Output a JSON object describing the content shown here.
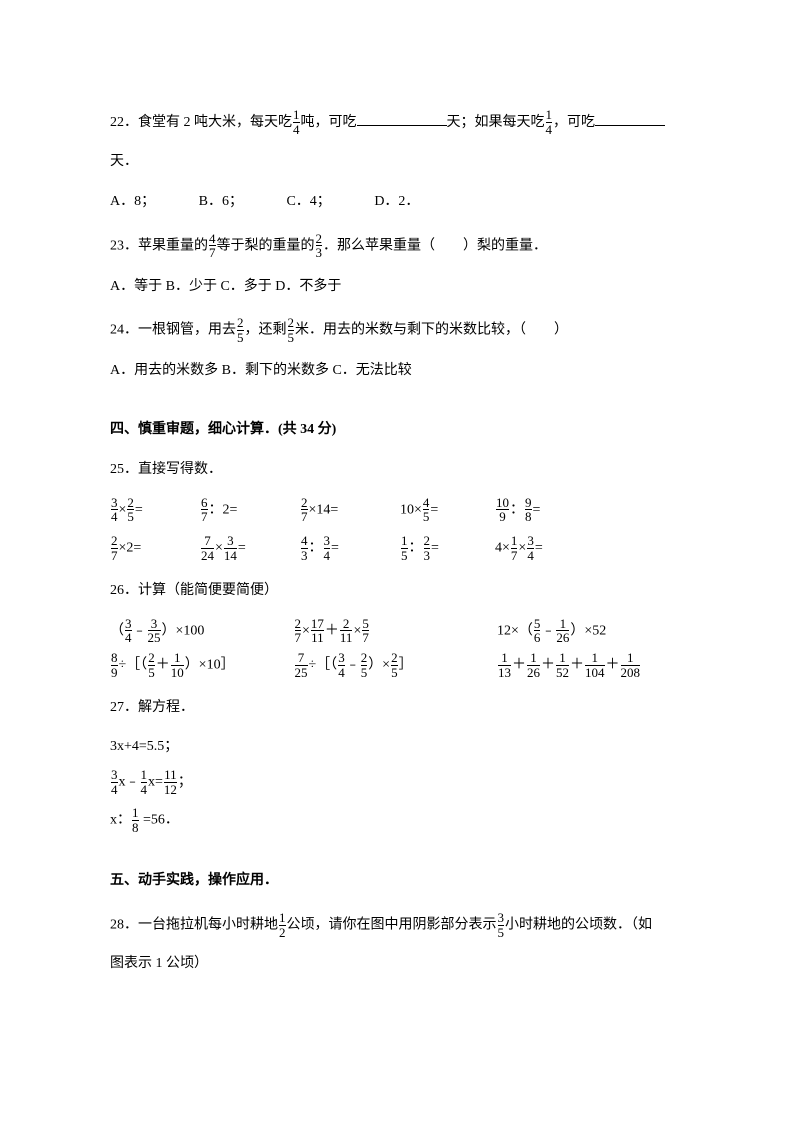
{
  "q22": {
    "num": "22",
    "p1": "．食堂有 2 吨大米，每天吃",
    "f1n": "1",
    "f1d": "4",
    "p2": "吨，可吃",
    "p3": "天；如果每天吃",
    "f2n": "1",
    "f2d": "4",
    "p4": "，可吃",
    "p5": "天．",
    "a": "A．8；",
    "b": "B．6；",
    "c": "C．4；",
    "d": "D．2．"
  },
  "q23": {
    "num": "23",
    "p1": "．苹果重量的",
    "f1n": "4",
    "f1d": "7",
    "p2": "等于梨的重量的",
    "f2n": "2",
    "f2d": "3",
    "p3": "．那么苹果重量（　　）梨的重量．",
    "opts": "A．等于 B．少于 C．多于 D．不多于"
  },
  "q24": {
    "num": "24",
    "p1": "．一根钢管，用去",
    "f1n": "2",
    "f1d": "5",
    "p2": "，还剩",
    "f2n": "2",
    "f2d": "5",
    "p3": "米．用去的米数与剩下的米数比较，（　　）",
    "opts": "A．用去的米数多 B．剩下的米数多 C．无法比较"
  },
  "sec4": "四、慎重审题，细心计算．(共 34 分)",
  "q25": {
    "num": "25",
    "title": "．直接写得数．",
    "r1": [
      {
        "an": "3",
        "ad": "4",
        "bn": "2",
        "bd": "5",
        "op": "×",
        "tail": "="
      },
      {
        "an": "6",
        "ad": "7",
        "literal_a": "",
        "op": "：",
        "bn": "",
        "bd": "",
        "literal_b": "2",
        "tail": "="
      },
      {
        "an": "2",
        "ad": "7",
        "op": "×",
        "literal_b": "14",
        "tail": "="
      },
      {
        "literal_a": "10",
        "op": "×",
        "bn": "4",
        "bd": "5",
        "tail": "="
      },
      {
        "an": "10",
        "ad": "9",
        "op": "：",
        "bn": "9",
        "bd": "8",
        "tail": "="
      }
    ],
    "r2": [
      {
        "an": "2",
        "ad": "7",
        "op": "×",
        "literal_b": "2",
        "tail": "="
      },
      {
        "an": "7",
        "ad": "24",
        "op": "×",
        "bn": "3",
        "bd": "14",
        "tail": "="
      },
      {
        "an": "4",
        "ad": "3",
        "op": "：",
        "bn": "3",
        "bd": "4",
        "tail": "="
      },
      {
        "an": "1",
        "ad": "5",
        "op": "：",
        "bn": "2",
        "bd": "3",
        "tail": "="
      },
      {
        "literal_a": "4×",
        "an": "1",
        "ad": "7",
        "op": "×",
        "bn": "3",
        "bd": "4",
        "tail": "="
      }
    ]
  },
  "q26": {
    "num": "26",
    "title": "．计算（能简便要简便）",
    "r1": {
      "a": {
        "lp": "（",
        "f1n": "3",
        "f1d": "4",
        "op": "﹣",
        "f2n": "3",
        "f2d": "25",
        "rp": "）×100"
      },
      "b": {
        "f1n": "2",
        "f1d": "7",
        "op1": "×",
        "f2n": "17",
        "f2d": "11",
        "op2": "＋",
        "f3n": "2",
        "f3d": "11",
        "op3": "×",
        "f4n": "5",
        "f4d": "7"
      },
      "c": {
        "pre": "12×（",
        "f1n": "5",
        "f1d": "6",
        "op": "﹣",
        "f2n": "1",
        "f2d": "26",
        "post": "）×52"
      }
    },
    "r2": {
      "a": {
        "f1n": "8",
        "f1d": "9",
        "op1": "÷［（",
        "f2n": "2",
        "f2d": "5",
        "op2": "＋",
        "f3n": "1",
        "f3d": "10",
        "post": "）×10］"
      },
      "b": {
        "f1n": "7",
        "f1d": "25",
        "op1": "÷［（",
        "f2n": "3",
        "f2d": "4",
        "op2": "﹣",
        "f3n": "2",
        "f3d": "5",
        "mid": "）×",
        "f4n": "2",
        "f4d": "5",
        "post": "］"
      },
      "c": {
        "f1n": "1",
        "f1d": "13",
        "p": "＋",
        "f2n": "1",
        "f2d": "26",
        "f3n": "1",
        "f3d": "52",
        "f4n": "1",
        "f4d": "104",
        "f5n": "1",
        "f5d": "208"
      }
    }
  },
  "q27": {
    "num": "27",
    "title": "．解方程．",
    "e1": "3x+4=5.5；",
    "e2": {
      "f1n": "3",
      "f1d": "4",
      "x1": "x﹣",
      "f2n": "1",
      "f2d": "4",
      "x2": "x=",
      "f3n": "11",
      "f3d": "12",
      "tail": "；"
    },
    "e3": {
      "pre": "x：",
      "f1n": "1",
      "f1d": "8",
      "post": " =56．"
    }
  },
  "sec5": "五、动手实践，操作应用．",
  "q28": {
    "num": "28",
    "p1": "．一台拖拉机每小时耕地",
    "f1n": "1",
    "f1d": "2",
    "p2": "公顷，请你在图中用阴影部分表示",
    "f2n": "3",
    "f2d": "5",
    "p3": "小时耕地的公顷数．（如",
    "p4": "图表示 1 公顷）"
  }
}
